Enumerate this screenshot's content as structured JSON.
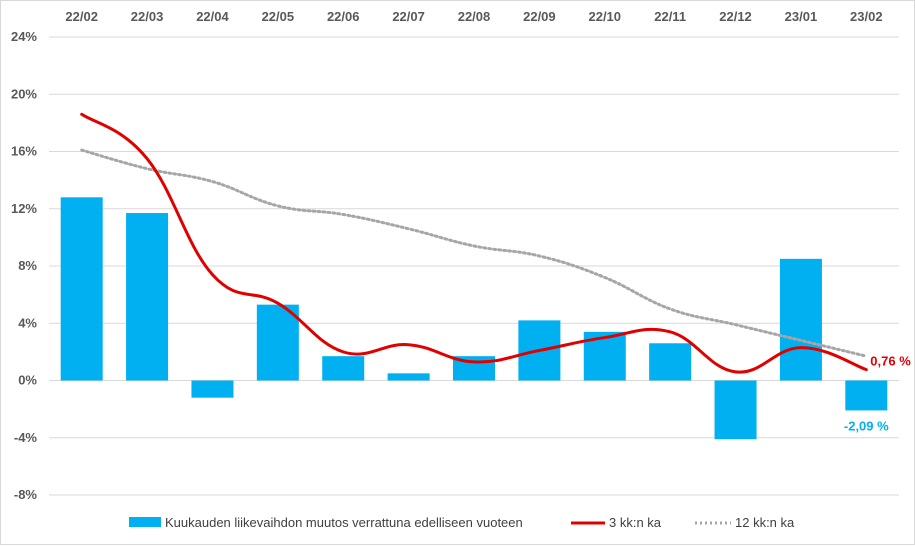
{
  "chart_data": {
    "type": "bar",
    "categories": [
      "22/02",
      "22/03",
      "22/04",
      "22/05",
      "22/06",
      "22/07",
      "22/08",
      "22/09",
      "22/10",
      "22/11",
      "22/12",
      "23/01",
      "23/02"
    ],
    "y_ticks": [
      "24%",
      "20%",
      "16%",
      "12%",
      "8%",
      "4%",
      "0%",
      "-4%",
      "-8%"
    ],
    "ylim": [
      -8,
      24
    ],
    "grid": true,
    "legend_position": "bottom",
    "series": [
      {
        "name": "Kuukauden liikevaihdon muutos verrattuna edelliseen vuoteen",
        "kind": "bar",
        "color": "#00b0f0",
        "values": [
          12.8,
          11.7,
          -1.2,
          5.3,
          1.7,
          0.5,
          1.7,
          4.2,
          3.4,
          2.6,
          -4.1,
          8.5,
          -2.09
        ]
      },
      {
        "name": "3 kk:n ka",
        "kind": "line",
        "color": "#e00000",
        "values": [
          18.6,
          15.5,
          7.4,
          5.4,
          2.0,
          2.5,
          1.3,
          2.1,
          3.0,
          3.4,
          0.6,
          2.3,
          0.76
        ]
      },
      {
        "name": "12 kk:n ka",
        "kind": "dotted-line",
        "color": "#a6a6a6",
        "values": [
          16.1,
          14.8,
          13.9,
          12.2,
          11.6,
          10.6,
          9.4,
          8.7,
          7.2,
          5.0,
          3.9,
          2.8,
          1.7
        ]
      }
    ],
    "annotations": {
      "line_end_label": "0,76 %",
      "bar_end_label": "-2,09 %"
    }
  }
}
